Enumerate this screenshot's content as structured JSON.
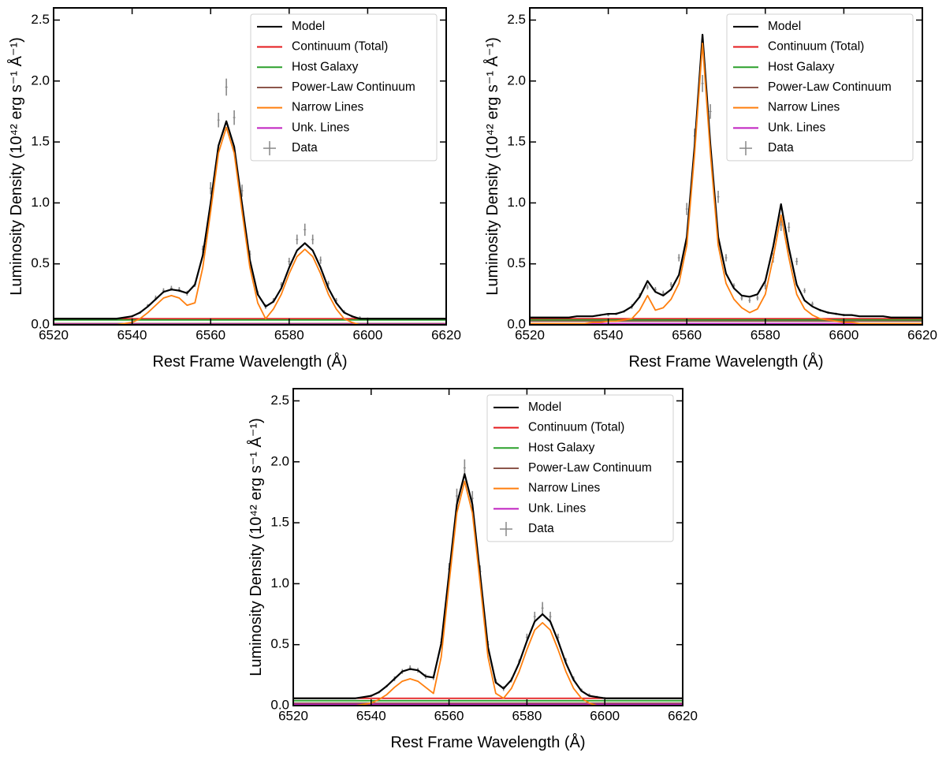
{
  "chart_data": [
    {
      "type": "line",
      "xlabel": "Rest Frame Wavelength (Å)",
      "ylabel": "Luminosity Density (10⁴² erg s⁻¹ Å⁻¹)",
      "x": [
        6520,
        6522,
        6524,
        6526,
        6528,
        6530,
        6532,
        6534,
        6536,
        6538,
        6540,
        6542,
        6544,
        6546,
        6548,
        6550,
        6552,
        6554,
        6556,
        6558,
        6560,
        6562,
        6564,
        6566,
        6568,
        6570,
        6572,
        6574,
        6576,
        6578,
        6580,
        6582,
        6584,
        6586,
        6588,
        6590,
        6592,
        6594,
        6596,
        6598,
        6600,
        6602,
        6604,
        6606,
        6608,
        6610,
        6612,
        6614,
        6616,
        6618,
        6620
      ],
      "xlim": [
        6520,
        6620
      ],
      "xticks": [
        6520,
        6540,
        6560,
        6580,
        6600,
        6620
      ],
      "ylim": [
        0,
        2.6
      ],
      "yticks": [
        {
          "value": 0,
          "label": "0.0"
        },
        0.5,
        {
          "value": 1,
          "label": "1.0"
        },
        1.5,
        {
          "value": 2,
          "label": "2.0"
        },
        2.5
      ],
      "legend": "upper right",
      "series": [
        {
          "name": "Model",
          "color": "#000000",
          "values": [
            0.05,
            0.05,
            0.05,
            0.05,
            0.05,
            0.05,
            0.05,
            0.05,
            0.05,
            0.06,
            0.07,
            0.1,
            0.15,
            0.21,
            0.27,
            0.29,
            0.28,
            0.26,
            0.33,
            0.57,
            1.0,
            1.47,
            1.67,
            1.46,
            0.99,
            0.53,
            0.25,
            0.15,
            0.19,
            0.3,
            0.47,
            0.61,
            0.67,
            0.61,
            0.47,
            0.3,
            0.18,
            0.1,
            0.07,
            0.05,
            0.05,
            0.05,
            0.05,
            0.05,
            0.05,
            0.05,
            0.05,
            0.05,
            0.05,
            0.05,
            0.05
          ]
        },
        {
          "name": "Continuum (Total)",
          "color": "#e41a1c",
          "x": [
            6520,
            6620
          ],
          "values": [
            0.05,
            0.05
          ]
        },
        {
          "name": "Host Galaxy",
          "color": "#2ca02c",
          "x": [
            6520,
            6620
          ],
          "values": [
            0.04,
            0.04
          ]
        },
        {
          "name": "Power-Law Continuum",
          "color": "#8c564b",
          "x": [
            6520,
            6620
          ],
          "values": [
            0.01,
            0.01
          ]
        },
        {
          "name": "Narrow Lines",
          "color": "#ff7f0e",
          "values": [
            0,
            0,
            0,
            0,
            0,
            0,
            0,
            0,
            0,
            0.01,
            0.02,
            0.05,
            0.1,
            0.16,
            0.22,
            0.24,
            0.22,
            0.16,
            0.18,
            0.47,
            0.93,
            1.41,
            1.62,
            1.41,
            0.93,
            0.47,
            0.18,
            0.05,
            0.13,
            0.25,
            0.42,
            0.56,
            0.62,
            0.56,
            0.42,
            0.25,
            0.13,
            0.05,
            0.02,
            0,
            0,
            0,
            0,
            0,
            0,
            0,
            0,
            0,
            0,
            0,
            0
          ]
        },
        {
          "name": "Unk. Lines",
          "color": "#c020c0",
          "x": [
            6520,
            6620
          ],
          "values": [
            0.005,
            0.005
          ]
        },
        {
          "name": "Data",
          "color": "#888888",
          "x": [
            6540,
            6542,
            6544,
            6546,
            6548,
            6550,
            6552,
            6554,
            6556,
            6558,
            6560,
            6562,
            6564,
            6566,
            6568,
            6570,
            6572,
            6574,
            6576,
            6578,
            6580,
            6582,
            6584,
            6586,
            6588,
            6590,
            6592,
            6594,
            6596,
            6598,
            6600
          ],
          "values": [
            0.07,
            0.1,
            0.16,
            0.22,
            0.28,
            0.3,
            0.29,
            0.26,
            0.33,
            0.62,
            1.12,
            1.68,
            1.95,
            1.7,
            1.1,
            0.58,
            0.26,
            0.15,
            0.2,
            0.33,
            0.52,
            0.7,
            0.78,
            0.7,
            0.53,
            0.34,
            0.2,
            0.11,
            0.07,
            0.06,
            0.05
          ],
          "errors": [
            0.01,
            0.01,
            0.01,
            0.02,
            0.02,
            0.02,
            0.02,
            0.02,
            0.02,
            0.03,
            0.05,
            0.06,
            0.07,
            0.06,
            0.05,
            0.03,
            0.02,
            0.02,
            0.02,
            0.02,
            0.03,
            0.04,
            0.05,
            0.04,
            0.03,
            0.02,
            0.02,
            0.01,
            0.01,
            0.01,
            0.01
          ]
        }
      ]
    },
    {
      "type": "line",
      "xlabel": "Rest Frame Wavelength (Å)",
      "ylabel": "Luminosity Density (10⁴² erg s⁻¹ Å⁻¹)",
      "x": [
        6520,
        6522,
        6524,
        6526,
        6528,
        6530,
        6532,
        6534,
        6536,
        6538,
        6540,
        6542,
        6544,
        6546,
        6548,
        6550,
        6552,
        6554,
        6556,
        6558,
        6560,
        6562,
        6564,
        6566,
        6568,
        6570,
        6572,
        6574,
        6576,
        6578,
        6580,
        6582,
        6584,
        6586,
        6588,
        6590,
        6592,
        6594,
        6596,
        6598,
        6600,
        6602,
        6604,
        6606,
        6608,
        6610,
        6612,
        6614,
        6616,
        6618,
        6620
      ],
      "xlim": [
        6520,
        6620
      ],
      "xticks": [
        6520,
        6540,
        6560,
        6580,
        6600,
        6620
      ],
      "ylim": [
        0,
        2.6
      ],
      "yticks": [
        {
          "value": 0,
          "label": "0.0"
        },
        0.5,
        {
          "value": 1,
          "label": "1.0"
        },
        1.5,
        {
          "value": 2,
          "label": "2.0"
        },
        2.5
      ],
      "legend": "upper right",
      "series": [
        {
          "name": "Model",
          "color": "#000000",
          "values": [
            0.06,
            0.06,
            0.06,
            0.06,
            0.06,
            0.06,
            0.07,
            0.07,
            0.07,
            0.08,
            0.09,
            0.09,
            0.11,
            0.15,
            0.23,
            0.36,
            0.27,
            0.24,
            0.29,
            0.41,
            0.72,
            1.47,
            2.38,
            1.48,
            0.72,
            0.42,
            0.3,
            0.24,
            0.23,
            0.25,
            0.36,
            0.64,
            0.99,
            0.63,
            0.33,
            0.2,
            0.15,
            0.12,
            0.1,
            0.09,
            0.08,
            0.08,
            0.07,
            0.07,
            0.07,
            0.07,
            0.06,
            0.06,
            0.06,
            0.06,
            0.06
          ]
        },
        {
          "name": "Continuum (Total)",
          "color": "#e41a1c",
          "x": [
            6520,
            6620
          ],
          "values": [
            0.05,
            0.05
          ]
        },
        {
          "name": "Host Galaxy",
          "color": "#2ca02c",
          "x": [
            6520,
            6620
          ],
          "values": [
            0.04,
            0.04
          ]
        },
        {
          "name": "Power-Law Continuum",
          "color": "#8c564b",
          "x": [
            6520,
            6620
          ],
          "values": [
            0.03,
            0.03
          ]
        },
        {
          "name": "Narrow Lines",
          "color": "#ff7f0e",
          "values": [
            0.01,
            0.01,
            0.01,
            0.01,
            0.01,
            0.01,
            0.01,
            0.01,
            0.02,
            0.02,
            0.03,
            0.03,
            0.04,
            0.05,
            0.12,
            0.24,
            0.12,
            0.14,
            0.21,
            0.34,
            0.65,
            1.41,
            2.31,
            1.41,
            0.65,
            0.34,
            0.21,
            0.14,
            0.1,
            0.13,
            0.25,
            0.55,
            0.9,
            0.55,
            0.25,
            0.13,
            0.08,
            0.05,
            0.04,
            0.03,
            0.02,
            0.02,
            0.01,
            0.01,
            0.01,
            0.01,
            0.01,
            0.01,
            0.01,
            0.01,
            0.01
          ]
        },
        {
          "name": "Unk. Lines",
          "color": "#c020c0",
          "x": [
            6520,
            6620
          ],
          "values": [
            0.01,
            0.01
          ]
        },
        {
          "name": "Data",
          "color": "#888888",
          "x": [
            6540,
            6542,
            6544,
            6546,
            6548,
            6550,
            6552,
            6554,
            6556,
            6558,
            6560,
            6562,
            6564,
            6566,
            6568,
            6570,
            6572,
            6574,
            6576,
            6578,
            6580,
            6582,
            6584,
            6586,
            6588,
            6590,
            6592,
            6594,
            6596,
            6598,
            6600
          ],
          "values": [
            0.08,
            0.09,
            0.11,
            0.15,
            0.24,
            0.31,
            0.29,
            0.26,
            0.33,
            0.55,
            0.95,
            1.55,
            1.98,
            1.75,
            1.05,
            0.55,
            0.32,
            0.22,
            0.2,
            0.22,
            0.32,
            0.55,
            0.82,
            0.8,
            0.52,
            0.28,
            0.17,
            0.12,
            0.1,
            0.09,
            0.08
          ],
          "errors": [
            0.01,
            0.01,
            0.01,
            0.02,
            0.02,
            0.02,
            0.02,
            0.02,
            0.02,
            0.03,
            0.05,
            0.06,
            0.07,
            0.06,
            0.05,
            0.03,
            0.02,
            0.02,
            0.02,
            0.02,
            0.03,
            0.04,
            0.05,
            0.04,
            0.03,
            0.02,
            0.02,
            0.01,
            0.01,
            0.01,
            0.01
          ]
        }
      ]
    },
    {
      "type": "line",
      "xlabel": "Rest Frame Wavelength (Å)",
      "ylabel": "Luminosity Density (10⁴² erg s⁻¹ Å⁻¹)",
      "x": [
        6520,
        6522,
        6524,
        6526,
        6528,
        6530,
        6532,
        6534,
        6536,
        6538,
        6540,
        6542,
        6544,
        6546,
        6548,
        6550,
        6552,
        6554,
        6556,
        6558,
        6560,
        6562,
        6564,
        6566,
        6568,
        6570,
        6572,
        6574,
        6576,
        6578,
        6580,
        6582,
        6584,
        6586,
        6588,
        6590,
        6592,
        6594,
        6596,
        6598,
        6600,
        6602,
        6604,
        6606,
        6608,
        6610,
        6612,
        6614,
        6616,
        6618,
        6620
      ],
      "xlim": [
        6520,
        6620
      ],
      "xticks": [
        6520,
        6540,
        6560,
        6580,
        6600,
        6620
      ],
      "ylim": [
        0,
        2.6
      ],
      "yticks": [
        {
          "value": 0,
          "label": "0.0"
        },
        0.5,
        {
          "value": 1,
          "label": "1.0"
        },
        1.5,
        {
          "value": 2,
          "label": "2.0"
        },
        2.5
      ],
      "legend": "upper right",
      "series": [
        {
          "name": "Model",
          "color": "#000000",
          "values": [
            0.06,
            0.06,
            0.06,
            0.06,
            0.06,
            0.06,
            0.06,
            0.06,
            0.06,
            0.07,
            0.08,
            0.11,
            0.16,
            0.22,
            0.28,
            0.3,
            0.29,
            0.24,
            0.23,
            0.51,
            1.08,
            1.65,
            1.9,
            1.65,
            1.07,
            0.48,
            0.19,
            0.14,
            0.21,
            0.35,
            0.53,
            0.69,
            0.75,
            0.69,
            0.53,
            0.35,
            0.21,
            0.12,
            0.08,
            0.07,
            0.06,
            0.06,
            0.06,
            0.06,
            0.06,
            0.06,
            0.06,
            0.06,
            0.06,
            0.06,
            0.06
          ]
        },
        {
          "name": "Continuum (Total)",
          "color": "#e41a1c",
          "x": [
            6520,
            6620
          ],
          "values": [
            0.06,
            0.06
          ]
        },
        {
          "name": "Host Galaxy",
          "color": "#2ca02c",
          "x": [
            6520,
            6620
          ],
          "values": [
            0.04,
            0.04
          ]
        },
        {
          "name": "Power-Law Continuum",
          "color": "#8c564b",
          "x": [
            6520,
            6620
          ],
          "values": [
            0.02,
            0.02
          ]
        },
        {
          "name": "Narrow Lines",
          "color": "#ff7f0e",
          "values": [
            0,
            0,
            0,
            0,
            0,
            0,
            0,
            0,
            0,
            0.01,
            0.02,
            0.05,
            0.09,
            0.15,
            0.2,
            0.22,
            0.2,
            0.15,
            0.1,
            0.4,
            1.0,
            1.58,
            1.84,
            1.58,
            1.0,
            0.4,
            0.1,
            0.06,
            0.14,
            0.28,
            0.46,
            0.62,
            0.68,
            0.62,
            0.46,
            0.28,
            0.14,
            0.06,
            0.02,
            0,
            0,
            0,
            0,
            0,
            0,
            0,
            0,
            0,
            0,
            0,
            0
          ]
        },
        {
          "name": "Unk. Lines",
          "color": "#c020c0",
          "x": [
            6520,
            6620
          ],
          "values": [
            0.01,
            0.01
          ]
        },
        {
          "name": "Data",
          "color": "#888888",
          "x": [
            6540,
            6542,
            6544,
            6546,
            6548,
            6550,
            6552,
            6554,
            6556,
            6558,
            6560,
            6562,
            6564,
            6566,
            6568,
            6570,
            6572,
            6574,
            6576,
            6578,
            6580,
            6582,
            6584,
            6586,
            6588,
            6590,
            6592,
            6594,
            6596,
            6598,
            6600
          ],
          "values": [
            0.08,
            0.11,
            0.16,
            0.22,
            0.28,
            0.31,
            0.29,
            0.24,
            0.23,
            0.52,
            1.12,
            1.72,
            1.95,
            1.7,
            1.1,
            0.5,
            0.2,
            0.14,
            0.21,
            0.36,
            0.56,
            0.73,
            0.8,
            0.73,
            0.56,
            0.37,
            0.22,
            0.13,
            0.09,
            0.07,
            0.06
          ],
          "errors": [
            0.01,
            0.01,
            0.01,
            0.02,
            0.02,
            0.02,
            0.02,
            0.02,
            0.02,
            0.03,
            0.05,
            0.06,
            0.07,
            0.06,
            0.05,
            0.03,
            0.02,
            0.02,
            0.02,
            0.02,
            0.03,
            0.04,
            0.05,
            0.04,
            0.03,
            0.02,
            0.02,
            0.01,
            0.01,
            0.01,
            0.01
          ]
        }
      ]
    }
  ]
}
